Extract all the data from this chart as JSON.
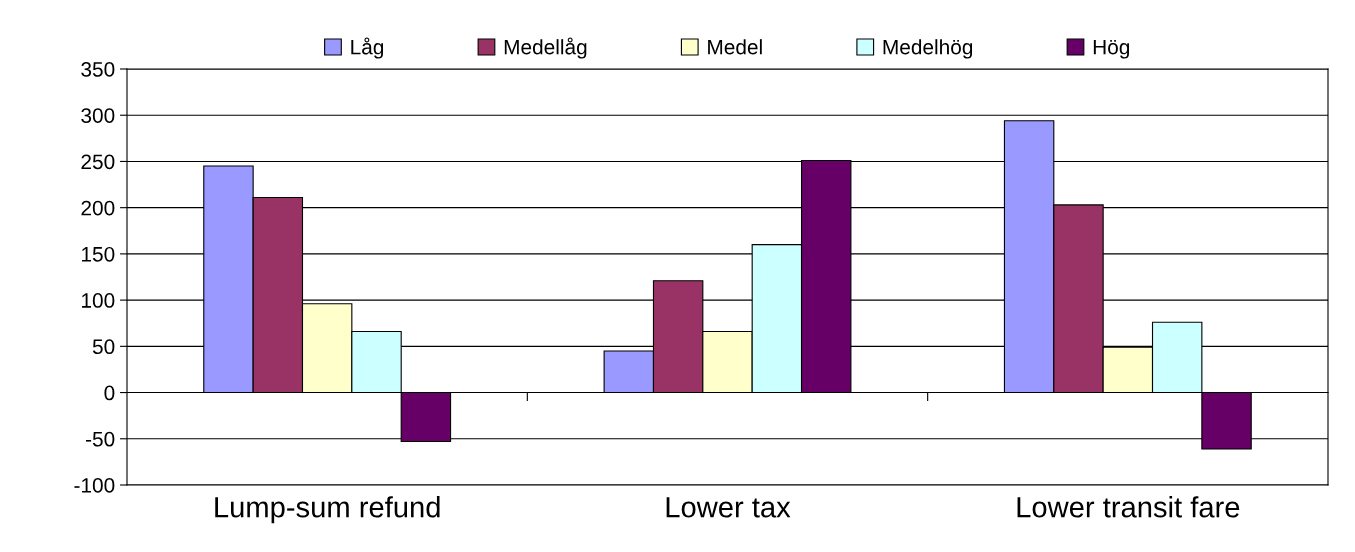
{
  "chart_data": {
    "type": "bar",
    "categories": [
      "Lump-sum refund",
      "Lower tax",
      "Lower transit fare"
    ],
    "series": [
      {
        "name": "Låg",
        "color": "#9999ff",
        "values": [
          245,
          45,
          294
        ]
      },
      {
        "name": "Medellåg",
        "color": "#993366",
        "values": [
          211,
          121,
          203
        ]
      },
      {
        "name": "Medel",
        "color": "#ffffcc",
        "values": [
          96,
          66,
          49
        ]
      },
      {
        "name": "Medelhög",
        "color": "#ccffff",
        "values": [
          66,
          160,
          76
        ]
      },
      {
        "name": "Hög",
        "color": "#660066",
        "values": [
          -53,
          251,
          -61
        ]
      }
    ],
    "ylim": [
      -100,
      350
    ],
    "yticks": [
      -100,
      -50,
      0,
      50,
      100,
      150,
      200,
      250,
      300,
      350
    ],
    "grid": "y",
    "legend": "top"
  }
}
